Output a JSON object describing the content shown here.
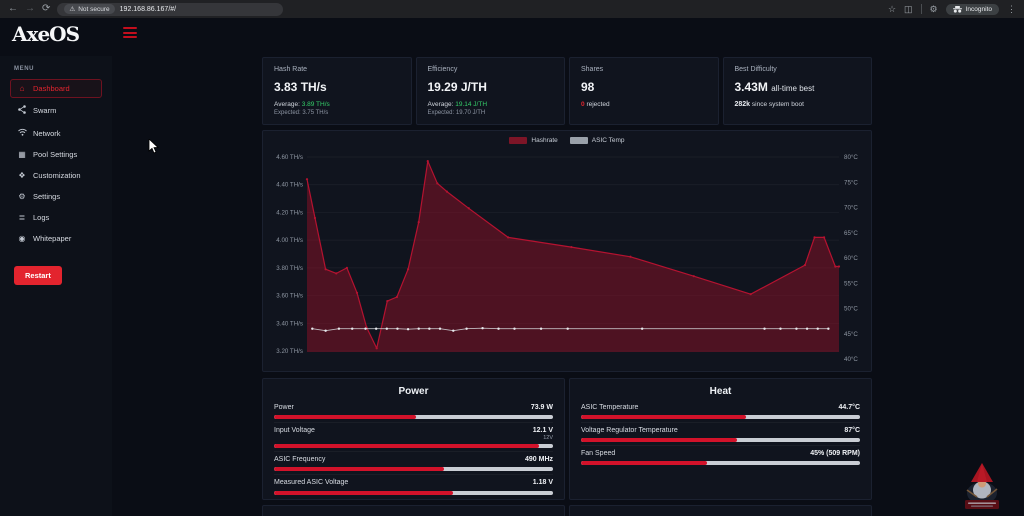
{
  "browser": {
    "url": "192.168.86.167/#/",
    "security_label": "Not secure",
    "incognito_label": "Incognito"
  },
  "app": {
    "logo": "AxeOS",
    "menu_header": "MENU",
    "sidebar": {
      "items": [
        {
          "label": "Dashboard",
          "icon": "home-icon",
          "active": true
        },
        {
          "label": "Swarm",
          "icon": "share-icon",
          "active": false
        },
        {
          "label": "Network",
          "icon": "wifi-icon",
          "active": false
        },
        {
          "label": "Pool Settings",
          "icon": "grid-icon",
          "active": false
        },
        {
          "label": "Customization",
          "icon": "palette-icon",
          "active": false
        },
        {
          "label": "Settings",
          "icon": "gear-icon",
          "active": false
        },
        {
          "label": "Logs",
          "icon": "list-icon",
          "active": false
        },
        {
          "label": "Whitepaper",
          "icon": "document-icon",
          "active": false
        }
      ],
      "restart_label": "Restart"
    },
    "cards": {
      "hashrate": {
        "label": "Hash Rate",
        "value": "3.83 TH/s",
        "avg_prefix": "Average:",
        "avg_value": "3.89 TH/s",
        "expected": "Expected: 3.75 TH/s"
      },
      "efficiency": {
        "label": "Efficiency",
        "value": "19.29 J/TH",
        "avg_prefix": "Average:",
        "avg_value": "19.14 J/TH",
        "expected": "Expected: 19.70 J/TH"
      },
      "shares": {
        "label": "Shares",
        "value": "98",
        "rejected_value": "0",
        "rejected_label": "rejected"
      },
      "difficulty": {
        "label": "Best Difficulty",
        "value": "3.43M",
        "value_suffix": "all-time best",
        "boot_value": "282k",
        "boot_label": "since system boot"
      }
    }
  },
  "chart_data": {
    "type": "area-line-combo",
    "title": "",
    "legend": [
      "Hashrate",
      "ASIC Temp"
    ],
    "legend_colors": [
      "#7d1527",
      "#9aa1aa"
    ],
    "grid": true,
    "left_ticks": [
      "4.60 TH/s",
      "4.40 TH/s",
      "4.20 TH/s",
      "4.00 TH/s",
      "3.80 TH/s",
      "3.60 TH/s",
      "3.40 TH/s",
      "3.20 TH/s"
    ],
    "right_ticks": [
      "80°C",
      "75°C",
      "70°C",
      "65°C",
      "60°C",
      "55°C",
      "50°C",
      "45°C",
      "40°C"
    ],
    "hashrate_axis": {
      "min": 3.2,
      "max": 4.6,
      "unit": "TH/s",
      "side": "left"
    },
    "temp_axis": {
      "min": 40,
      "max": 80,
      "unit": "°C",
      "side": "right"
    },
    "series": [
      {
        "name": "Hashrate",
        "kind": "area",
        "axis": "left",
        "stroke": "#b51230",
        "fill": "rgba(140,16,38,0.5)",
        "x_pct": [
          0,
          1.5,
          3.5,
          5.5,
          7.5,
          9.4,
          11.2,
          13.1,
          15.1,
          16.9,
          19,
          21,
          22.7,
          24.5,
          26.3,
          30.4,
          37.8,
          49.7,
          60.8,
          72.7,
          83.4,
          93.6,
          95.4,
          97.2,
          99.3,
          100
        ],
        "values": [
          4.44,
          4.16,
          3.79,
          3.76,
          3.8,
          3.62,
          3.37,
          3.22,
          3.56,
          3.59,
          3.79,
          4.13,
          4.57,
          4.41,
          4.35,
          4.23,
          4.02,
          3.95,
          3.88,
          3.74,
          3.61,
          3.82,
          4.02,
          4.02,
          3.81,
          3.81
        ]
      },
      {
        "name": "ASIC Temp",
        "kind": "line-markers",
        "axis": "right",
        "stroke": "#d7dade",
        "marker_fill": "#e8eaee",
        "x_pct": [
          1,
          3.5,
          6,
          8.5,
          11,
          13,
          15,
          17,
          19,
          21,
          23,
          25,
          27.5,
          30,
          33,
          36,
          39,
          44,
          49,
          63,
          86,
          89,
          92,
          94,
          96,
          98
        ],
        "values": [
          46,
          45.6,
          46,
          46,
          46,
          46,
          46,
          46,
          45.9,
          46,
          46,
          46,
          45.6,
          46,
          46.1,
          46,
          46,
          46,
          46,
          46,
          46,
          46,
          46,
          46,
          46,
          46
        ]
      }
    ]
  },
  "panels": {
    "power": {
      "title": "Power",
      "rows": [
        {
          "label": "Power",
          "value": "73.9 W",
          "fill": 51
        },
        {
          "label": "Input Voltage",
          "value": "12.1 V",
          "sub_value": "12V",
          "fill": 95
        },
        {
          "label": "ASIC Frequency",
          "value": "490 MHz",
          "fill": 61
        },
        {
          "label": "Measured ASIC Voltage",
          "value": "1.18 V",
          "fill": 64
        }
      ]
    },
    "heat": {
      "title": "Heat",
      "rows": [
        {
          "label": "ASIC Temperature",
          "value": "44.7°C",
          "fill": 59
        },
        {
          "label": "Voltage Regulator Temperature",
          "value": "87°C",
          "fill": 56
        },
        {
          "label": "Fan Speed",
          "value": "45% (509 RPM)",
          "fill": 45
        }
      ]
    }
  },
  "theme": {
    "accent_red": "#e3242e",
    "bar_red": "#d2122a",
    "bar_track": "#c9cdd4",
    "green": "#35d06a",
    "card_bg": "#10141e",
    "page_bg": "#0a0d15"
  }
}
